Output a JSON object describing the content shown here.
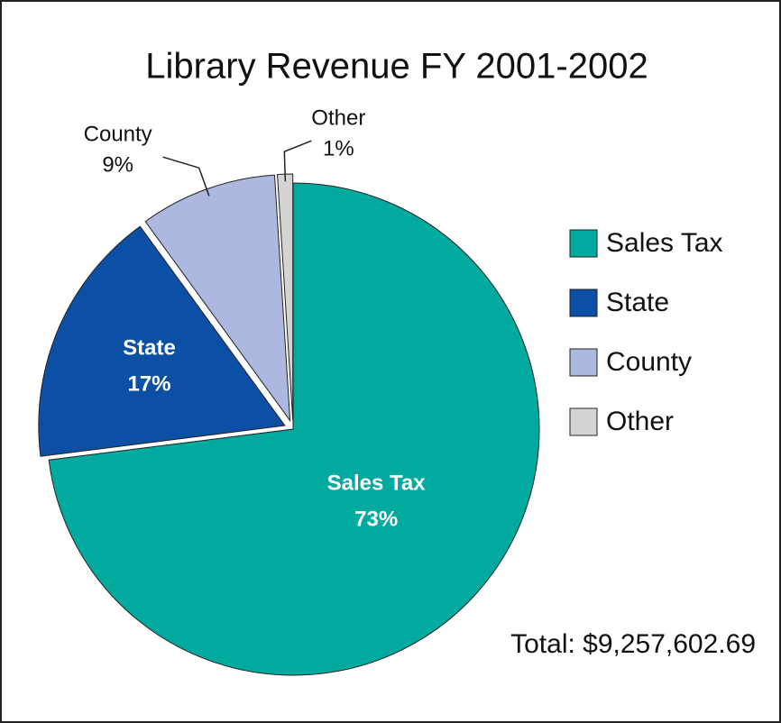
{
  "chart_data": {
    "type": "pie",
    "title": "Library Revenue FY 2001-2002",
    "categories": [
      "Sales Tax",
      "State",
      "County",
      "Other"
    ],
    "values": [
      73,
      17,
      9,
      1
    ],
    "value_labels": [
      "73%",
      "17%",
      "9%",
      "1%"
    ],
    "colors": [
      "#00aa9e",
      "#0b50a5",
      "#acb8e0",
      "#d4d4d4"
    ],
    "legend": "right",
    "annotation": "Total: $9,257,602.69"
  }
}
